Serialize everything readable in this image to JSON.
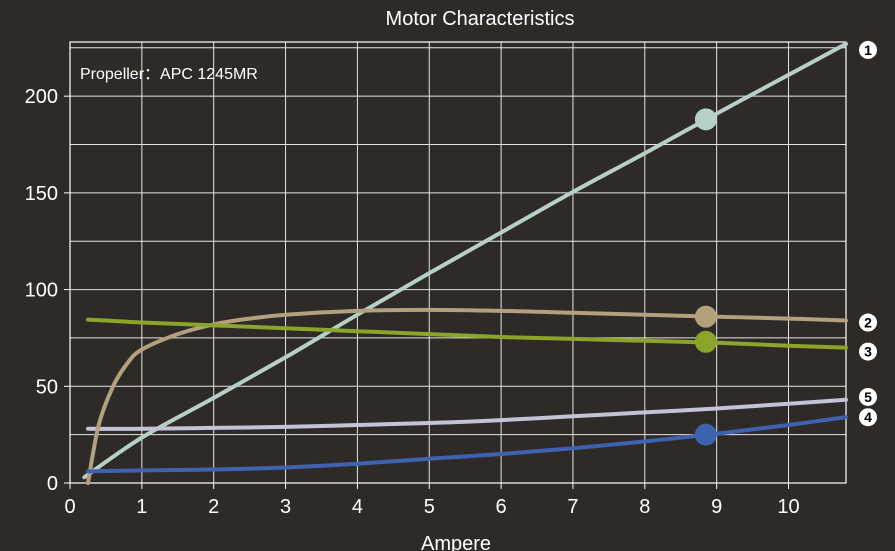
{
  "chart_data": {
    "type": "line",
    "title": "Motor Characteristics",
    "xlabel": "Ampere",
    "ylabel": "",
    "annotation": "Propeller：APC 1245MR",
    "xlim": [
      0,
      10.8
    ],
    "ylim": [
      0,
      228
    ],
    "xticks": [
      0,
      1,
      2,
      3,
      4,
      5,
      6,
      7,
      8,
      9,
      10
    ],
    "yticks": [
      0,
      50,
      100,
      150,
      200
    ],
    "grid": true,
    "background": "#2d2a28",
    "marker_x": 8.85,
    "series": [
      {
        "id": "1",
        "color": "#b7d0c7",
        "x": [
          0.2,
          1,
          2,
          3,
          4,
          5,
          6,
          7,
          8,
          9,
          10,
          10.8
        ],
        "y": [
          3,
          23.5,
          44,
          65,
          87,
          108.5,
          129.5,
          150.5,
          170.5,
          191,
          211,
          227
        ],
        "marker_y": 188
      },
      {
        "id": "2",
        "color": "#b3a07c",
        "x": [
          0.25,
          0.4,
          0.6,
          0.8,
          1,
          1.5,
          2,
          2.5,
          3,
          4,
          5,
          6,
          7,
          8,
          9,
          10,
          10.8
        ],
        "y": [
          0,
          30,
          50,
          62,
          69,
          77,
          82,
          85,
          87,
          89,
          89.5,
          89,
          88,
          87,
          86,
          85,
          84
        ],
        "marker_y": 86
      },
      {
        "id": "3",
        "color": "#8aa52a",
        "x": [
          0.25,
          1,
          2,
          3,
          4,
          5,
          6,
          7,
          8,
          9,
          10,
          10.8
        ],
        "y": [
          84.5,
          83,
          81.5,
          80,
          78.5,
          77,
          75.5,
          74.5,
          73.5,
          72.5,
          71,
          70
        ],
        "marker_y": 73
      },
      {
        "id": "4",
        "color": "#3f62b0",
        "x": [
          0.25,
          1,
          2,
          3,
          4,
          5,
          6,
          7,
          8,
          9,
          10,
          10.8
        ],
        "y": [
          6,
          6.5,
          7,
          8,
          10,
          12.5,
          15,
          18,
          21.5,
          25.5,
          30,
          34
        ],
        "marker_y": 25
      },
      {
        "id": "5",
        "color": "#c4c2d6",
        "x": [
          0.25,
          1,
          2,
          3,
          4,
          5,
          6,
          7,
          8,
          9,
          10,
          10.8
        ],
        "y": [
          28,
          28,
          28.5,
          29,
          30,
          31,
          32.5,
          34.5,
          36.5,
          38.5,
          41,
          43
        ],
        "marker_y": null
      }
    ]
  }
}
